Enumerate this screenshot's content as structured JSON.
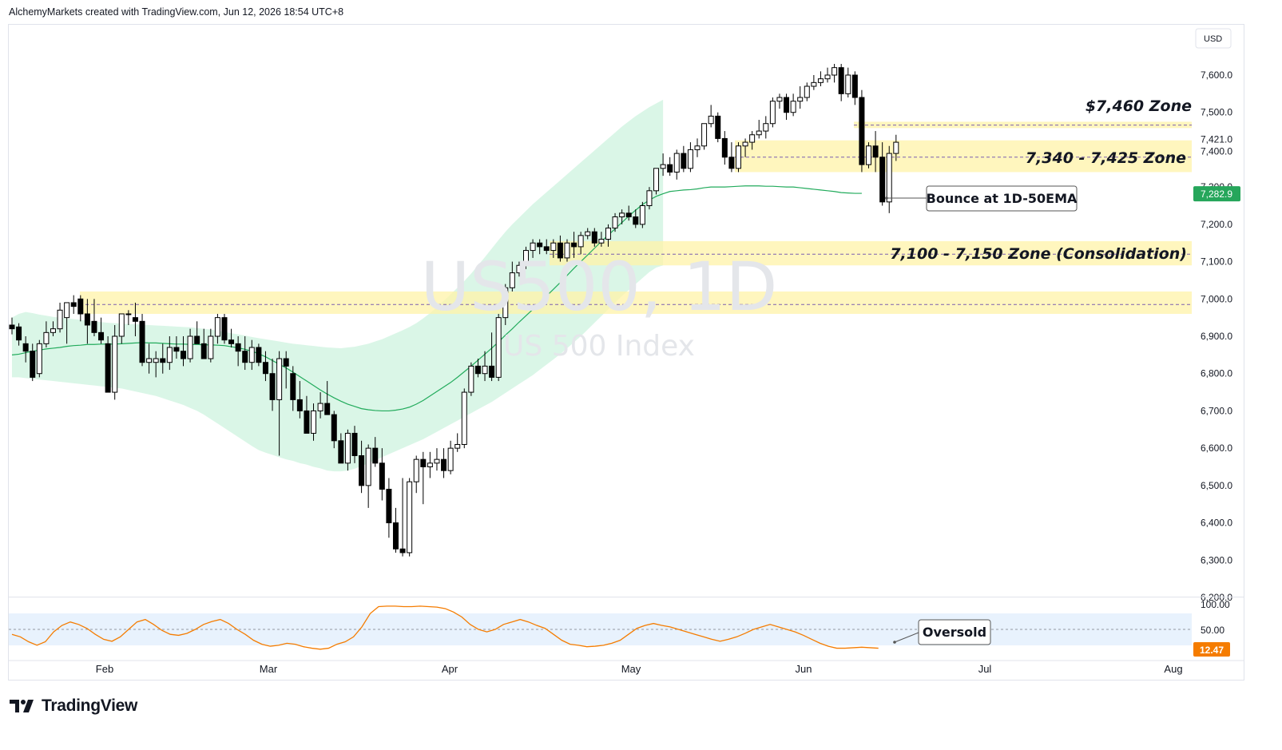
{
  "header": {
    "text": "AlchemyMarkets created with TradingView.com, Jun 12, 2026 18:54 UTC+8"
  },
  "footer": {
    "brand": "TradingView",
    "icon": "tradingview-logo-icon"
  },
  "colors": {
    "up": "#ffffff",
    "down": "#000000",
    "ema": "#22ab5c",
    "band": "#d3f5e3",
    "zone": "#fff3a8",
    "zone_overlap": "#c8ecb4",
    "rsi": "#f57c00",
    "rsi_band": "#e8f2fd",
    "price_badge": "#26a65b",
    "rsi_badge": "#f57c00"
  },
  "chart_data": {
    "type": "candlestick",
    "watermark": {
      "symbol_timeframe": "US500, 1D",
      "description": "US 500 Index"
    },
    "currency": "USD",
    "y_axis": {
      "ticks": [
        "7,600.0",
        "7,500.0",
        "7,421.0",
        "7,400.0",
        "7,300.0",
        "7,200.0",
        "7,100.0",
        "7,000.0",
        "6,900.0",
        "6,800.0",
        "6,700.0",
        "6,600.0",
        "6,500.0",
        "6,400.0",
        "6,300.0",
        "6,200.0"
      ],
      "range": [
        6200,
        7660
      ]
    },
    "x_axis": {
      "ticks": [
        "Feb",
        "Mar",
        "Apr",
        "May",
        "Jun",
        "Jul",
        "Aug"
      ]
    },
    "last_price": {
      "value": 7282.9,
      "label": "7,282.9"
    },
    "zones": [
      {
        "label": "$7,460 Zone",
        "low": 7458,
        "high": 7475,
        "line": 7466,
        "start": 1069
      },
      {
        "label": "7,340 - 7,425 Zone",
        "low": 7340,
        "high": 7425,
        "line": 7380,
        "start": 920
      },
      {
        "label": "7,100 - 7,150 Zone (Consolidation)",
        "low": 7090,
        "high": 7155,
        "line": 7120,
        "start": 688
      },
      {
        "label": "",
        "low": 6960,
        "high": 7020,
        "line": 6985,
        "start": 100
      }
    ],
    "annotations": [
      {
        "text": "Bounce at 1D-50EMA"
      },
      {
        "text": "Oversold"
      }
    ],
    "candles": [
      [
        6930,
        6950,
        6905,
        6920
      ],
      [
        6925,
        6935,
        6875,
        6890
      ],
      [
        6880,
        6900,
        6830,
        6860
      ],
      [
        6860,
        6880,
        6780,
        6790
      ],
      [
        6800,
        6890,
        6790,
        6880
      ],
      [
        6880,
        6940,
        6870,
        6910
      ],
      [
        6910,
        6940,
        6900,
        6920
      ],
      [
        6920,
        6990,
        6910,
        6970
      ],
      [
        6950,
        6990,
        6880,
        6990
      ],
      [
        6990,
        7010,
        6960,
        6980
      ],
      [
        7000,
        7010,
        6940,
        6960
      ],
      [
        6960,
        7000,
        6880,
        6930
      ],
      [
        6940,
        7000,
        6900,
        6910
      ],
      [
        6910,
        6950,
        6880,
        6890
      ],
      [
        6880,
        6900,
        6750,
        6750
      ],
      [
        6750,
        6930,
        6730,
        6900
      ],
      [
        6900,
        6960,
        6880,
        6960
      ],
      [
        6960,
        6970,
        6930,
        6960
      ],
      [
        6950,
        6990,
        6900,
        6940
      ],
      [
        6940,
        6960,
        6820,
        6830
      ],
      [
        6830,
        6880,
        6800,
        6840
      ],
      [
        6830,
        6860,
        6790,
        6840
      ],
      [
        6840,
        6880,
        6800,
        6830
      ],
      [
        6830,
        6900,
        6810,
        6870
      ],
      [
        6870,
        6900,
        6840,
        6860
      ],
      [
        6860,
        6900,
        6820,
        6840
      ],
      [
        6840,
        6920,
        6830,
        6900
      ],
      [
        6900,
        6940,
        6880,
        6880
      ],
      [
        6880,
        6920,
        6840,
        6840
      ],
      [
        6840,
        6920,
        6830,
        6900
      ],
      [
        6900,
        6960,
        6880,
        6950
      ],
      [
        6950,
        6960,
        6880,
        6890
      ],
      [
        6890,
        6920,
        6870,
        6880
      ],
      [
        6880,
        6900,
        6820,
        6860
      ],
      [
        6860,
        6900,
        6810,
        6830
      ],
      [
        6830,
        6890,
        6810,
        6870
      ],
      [
        6870,
        6880,
        6820,
        6830
      ],
      [
        6830,
        6860,
        6780,
        6800
      ],
      [
        6800,
        6840,
        6700,
        6730
      ],
      [
        6730,
        6860,
        6580,
        6840
      ],
      [
        6840,
        6860,
        6760,
        6820
      ],
      [
        6800,
        6820,
        6700,
        6730
      ],
      [
        6730,
        6780,
        6680,
        6700
      ],
      [
        6700,
        6740,
        6640,
        6640
      ],
      [
        6640,
        6720,
        6620,
        6700
      ],
      [
        6700,
        6750,
        6680,
        6720
      ],
      [
        6720,
        6780,
        6700,
        6690
      ],
      [
        6690,
        6700,
        6600,
        6620
      ],
      [
        6620,
        6640,
        6560,
        6560
      ],
      [
        6560,
        6650,
        6540,
        6640
      ],
      [
        6640,
        6660,
        6560,
        6580
      ],
      [
        6580,
        6620,
        6480,
        6500
      ],
      [
        6500,
        6610,
        6440,
        6600
      ],
      [
        6600,
        6630,
        6550,
        6560
      ],
      [
        6560,
        6600,
        6460,
        6490
      ],
      [
        6490,
        6520,
        6360,
        6400
      ],
      [
        6400,
        6440,
        6320,
        6330
      ],
      [
        6330,
        6520,
        6310,
        6320
      ],
      [
        6320,
        6520,
        6310,
        6510
      ],
      [
        6510,
        6580,
        6480,
        6570
      ],
      [
        6570,
        6590,
        6450,
        6550
      ],
      [
        6550,
        6590,
        6520,
        6560
      ],
      [
        6560,
        6600,
        6540,
        6570
      ],
      [
        6570,
        6600,
        6520,
        6540
      ],
      [
        6540,
        6620,
        6530,
        6600
      ],
      [
        6600,
        6640,
        6590,
        6610
      ],
      [
        6610,
        6760,
        6600,
        6750
      ],
      [
        6750,
        6830,
        6740,
        6820
      ],
      [
        6820,
        6840,
        6790,
        6800
      ],
      [
        6800,
        6860,
        6780,
        6820
      ],
      [
        6820,
        6910,
        6780,
        6790
      ],
      [
        6790,
        6960,
        6780,
        6950
      ],
      [
        6950,
        7040,
        6930,
        7030
      ],
      [
        7030,
        7100,
        7020,
        7070
      ],
      [
        7070,
        7100,
        7060,
        7090
      ],
      [
        7090,
        7140,
        7080,
        7130
      ],
      [
        7130,
        7160,
        7110,
        7150
      ],
      [
        7150,
        7160,
        7120,
        7140
      ],
      [
        7140,
        7160,
        7120,
        7130
      ],
      [
        7130,
        7160,
        7110,
        7150
      ],
      [
        7150,
        7170,
        7100,
        7110
      ],
      [
        7110,
        7160,
        7100,
        7150
      ],
      [
        7150,
        7180,
        7110,
        7140
      ],
      [
        7140,
        7180,
        7120,
        7170
      ],
      [
        7170,
        7190,
        7160,
        7180
      ],
      [
        7180,
        7190,
        7140,
        7150
      ],
      [
        7150,
        7180,
        7140,
        7160
      ],
      [
        7160,
        7200,
        7140,
        7190
      ],
      [
        7190,
        7230,
        7180,
        7220
      ],
      [
        7220,
        7240,
        7200,
        7230
      ],
      [
        7230,
        7250,
        7210,
        7220
      ],
      [
        7220,
        7240,
        7190,
        7200
      ],
      [
        7200,
        7260,
        7190,
        7250
      ],
      [
        7250,
        7300,
        7240,
        7290
      ],
      [
        7290,
        7350,
        7280,
        7350
      ],
      [
        7350,
        7390,
        7330,
        7360
      ],
      [
        7360,
        7380,
        7330,
        7340
      ],
      [
        7340,
        7400,
        7320,
        7390
      ],
      [
        7390,
        7410,
        7340,
        7350
      ],
      [
        7350,
        7420,
        7340,
        7400
      ],
      [
        7400,
        7430,
        7380,
        7410
      ],
      [
        7410,
        7460,
        7400,
        7470
      ],
      [
        7470,
        7520,
        7460,
        7490
      ],
      [
        7490,
        7500,
        7420,
        7430
      ],
      [
        7430,
        7450,
        7360,
        7380
      ],
      [
        7380,
        7420,
        7340,
        7350
      ],
      [
        7350,
        7420,
        7340,
        7410
      ],
      [
        7410,
        7430,
        7380,
        7420
      ],
      [
        7420,
        7450,
        7400,
        7440
      ],
      [
        7440,
        7480,
        7430,
        7450
      ],
      [
        7450,
        7490,
        7430,
        7470
      ],
      [
        7470,
        7540,
        7460,
        7530
      ],
      [
        7530,
        7550,
        7510,
        7540
      ],
      [
        7540,
        7550,
        7480,
        7500
      ],
      [
        7500,
        7550,
        7490,
        7530
      ],
      [
        7530,
        7570,
        7510,
        7540
      ],
      [
        7540,
        7580,
        7530,
        7570
      ],
      [
        7570,
        7600,
        7560,
        7580
      ],
      [
        7580,
        7610,
        7570,
        7590
      ],
      [
        7590,
        7620,
        7580,
        7600
      ],
      [
        7600,
        7630,
        7580,
        7620
      ],
      [
        7620,
        7630,
        7530,
        7550
      ],
      [
        7550,
        7620,
        7540,
        7600
      ],
      [
        7600,
        7610,
        7520,
        7540
      ],
      [
        7540,
        7560,
        7340,
        7360
      ],
      [
        7360,
        7420,
        7350,
        7410
      ],
      [
        7410,
        7450,
        7340,
        7380
      ],
      [
        7380,
        7420,
        7250,
        7260
      ],
      [
        7260,
        7410,
        7230,
        7390
      ],
      [
        7390,
        7440,
        7370,
        7420
      ]
    ],
    "ema_50": [
      6850,
      6852,
      6856,
      6860,
      6863,
      6866,
      6868,
      6870,
      6873,
      6875,
      6876,
      6878,
      6878,
      6879,
      6879,
      6879,
      6880,
      6881,
      6882,
      6883,
      6882,
      6882,
      6881,
      6880,
      6879,
      6879,
      6878,
      6878,
      6877,
      6877,
      6876,
      6875,
      6872,
      6869,
      6865,
      6860,
      6853,
      6845,
      6835,
      6825,
      6815,
      6804,
      6792,
      6780,
      6768,
      6756,
      6745,
      6735,
      6726,
      6718,
      6712,
      6706,
      6703,
      6701,
      6700,
      6700,
      6702,
      6705,
      6710,
      6718,
      6728,
      6740,
      6752,
      6764,
      6776,
      6790,
      6805,
      6820,
      6836,
      6852,
      6868,
      6885,
      6903,
      6920,
      6938,
      6955,
      6972,
      6990,
      7008,
      7026,
      7044,
      7063,
      7082,
      7100,
      7118,
      7136,
      7154,
      7171,
      7188,
      7205,
      7222,
      7238,
      7253,
      7265,
      7275,
      7282,
      7288,
      7290,
      7292,
      7293,
      7295,
      7298,
      7300,
      7300,
      7300,
      7301,
      7302,
      7303,
      7303,
      7303,
      7302,
      7302,
      7301,
      7300,
      7300,
      7298,
      7296,
      7294,
      7292,
      7290,
      7288,
      7285,
      7284,
      7283,
      7283
    ],
    "band_upper": [
      6950,
      6960,
      6965,
      6962,
      6958,
      6955,
      6952,
      6950,
      6948,
      6946,
      6944,
      6942,
      6940,
      6938,
      6936,
      6935,
      6934,
      6933,
      6932,
      6931,
      6930,
      6929,
      6928,
      6927,
      6926,
      6925,
      6924,
      6922,
      6920,
      6918,
      6915,
      6912,
      6908,
      6905,
      6902,
      6898,
      6895,
      6892,
      6889,
      6886,
      6883,
      6880,
      6878,
      6876,
      6874,
      6872,
      6870,
      6869,
      6868,
      6870,
      6872,
      6876,
      6880,
      6886,
      6892,
      6900,
      6908,
      6916,
      6925,
      6935,
      6948,
      6962,
      6978,
      6995,
      7012,
      7030,
      7048,
      7068,
      7090,
      7112,
      7135,
      7158,
      7180,
      7200,
      7218,
      7236,
      7254,
      7270,
      7286,
      7302,
      7318,
      7334,
      7350,
      7366,
      7382,
      7398,
      7414,
      7430,
      7446,
      7462,
      7476,
      7490,
      7502,
      7514,
      7524,
      7534
    ],
    "band_lower": [
      6790,
      6790,
      6788,
      6786,
      6784,
      6782,
      6780,
      6778,
      6776,
      6774,
      6772,
      6770,
      6768,
      6766,
      6764,
      6762,
      6760,
      6756,
      6752,
      6748,
      6744,
      6740,
      6734,
      6728,
      6722,
      6716,
      6708,
      6700,
      6690,
      6678,
      6666,
      6654,
      6642,
      6630,
      6618,
      6606,
      6595,
      6588,
      6582,
      6576,
      6570,
      6566,
      6560,
      6556,
      6550,
      6546,
      6540,
      6538,
      6538,
      6540,
      6545,
      6552,
      6560,
      6568,
      6576,
      6584,
      6592,
      6600,
      6608,
      6616,
      6624,
      6634,
      6644,
      6654,
      6664,
      6674,
      6684,
      6694,
      6704,
      6714,
      6724,
      6736,
      6748,
      6760,
      6772,
      6784,
      6796,
      6810,
      6824,
      6838,
      6852,
      6868,
      6884,
      6900,
      6918,
      6936,
      6954,
      6972,
      6990,
      7008,
      7024,
      7040,
      7056,
      7072,
      7084,
      7090
    ],
    "rsi": {
      "ticks": [
        "100.00",
        "50.00"
      ],
      "last": {
        "value": 12.47,
        "label": "12.47"
      },
      "values": [
        40,
        35,
        25,
        18,
        25,
        45,
        58,
        65,
        60,
        52,
        40,
        30,
        26,
        35,
        50,
        65,
        70,
        60,
        48,
        40,
        38,
        42,
        50,
        60,
        66,
        70,
        62,
        50,
        40,
        28,
        20,
        16,
        18,
        22,
        20,
        15,
        12,
        10,
        12,
        20,
        25,
        35,
        55,
        82,
        96,
        97,
        97,
        96,
        96,
        97,
        96,
        95,
        92,
        85,
        75,
        60,
        50,
        45,
        50,
        60,
        65,
        70,
        65,
        58,
        52,
        40,
        28,
        20,
        18,
        15,
        16,
        18,
        22,
        28,
        40,
        52,
        58,
        62,
        58,
        55,
        50,
        45,
        40,
        35,
        30,
        26,
        30,
        35,
        42,
        50,
        55,
        60,
        55,
        50,
        45,
        38,
        30,
        22,
        16,
        12,
        12,
        13,
        14,
        13,
        12
      ]
    }
  }
}
